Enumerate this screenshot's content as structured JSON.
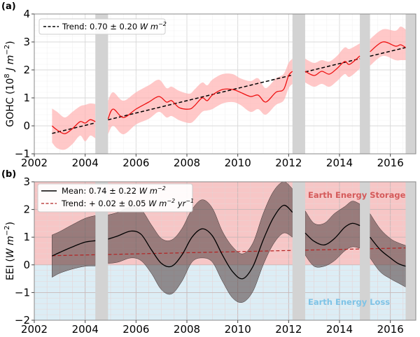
{
  "chart_data": [
    {
      "panel_label": "(a)",
      "type": "line",
      "ylabel": "GOHC (10",
      "ylabel_sup": "8",
      "ylabel_unit": " J m",
      "ylabel_unit_sup": "−2",
      "ylabel_close": ")",
      "xlim": [
        2002,
        2017
      ],
      "ylim": [
        -1,
        4
      ],
      "xticks": [
        "2002",
        "2004",
        "2006",
        "2008",
        "2010",
        "2012",
        "2014",
        "2016"
      ],
      "yticks": [
        "−1",
        "0",
        "1",
        "2",
        "3",
        "4"
      ],
      "grid": true,
      "legend_position": "top-left",
      "legend": [
        {
          "label": "Trend: 0.70 ± 0.20 ",
          "label_italic": "W m",
          "label_sup": "−2",
          "style": "dashed",
          "color": "#000000"
        }
      ],
      "gaps": [
        [
          2004.4,
          2004.9
        ],
        [
          2012.15,
          2012.65
        ],
        [
          2014.8,
          2015.2
        ],
        [
          2016.6,
          2017.0
        ]
      ],
      "series": [
        {
          "name": "GOHC",
          "color": "#ee1111",
          "band_color": "#ffb0b0",
          "segments": [
            {
              "x": [
                2002.7,
                2002.9,
                2003.2,
                2003.5,
                2003.8,
                2004.0,
                2004.2,
                2004.4
              ],
              "y": [
                0.0,
                -0.15,
                -0.28,
                -0.1,
                0.15,
                0.1,
                0.22,
                0.15
              ],
              "lo": [
                -0.6,
                -0.8,
                -0.85,
                -0.65,
                -0.35,
                -0.55,
                -0.35,
                -0.45
              ],
              "hi": [
                0.62,
                0.5,
                0.3,
                0.5,
                0.7,
                0.75,
                0.8,
                0.78
              ]
            },
            {
              "x": [
                2004.9,
                2005.1,
                2005.5,
                2006.0,
                2006.5,
                2006.9,
                2007.2,
                2007.4,
                2007.7,
                2008.1,
                2008.3,
                2008.6,
                2008.8,
                2009.0,
                2009.4,
                2009.8,
                2010.1,
                2010.5,
                2010.8,
                2011.1,
                2011.5,
                2011.8,
                2012.0,
                2012.15
              ],
              "y": [
                0.25,
                0.6,
                0.3,
                0.6,
                0.85,
                1.05,
                0.85,
                0.9,
                0.65,
                0.6,
                0.72,
                1.0,
                0.9,
                1.1,
                1.3,
                1.3,
                1.2,
                1.05,
                1.1,
                0.85,
                1.2,
                1.3,
                1.8,
                1.95
              ],
              "lo": [
                -0.3,
                0.0,
                -0.3,
                0.05,
                0.25,
                0.5,
                0.3,
                0.35,
                0.2,
                0.1,
                0.2,
                0.5,
                0.55,
                0.6,
                0.8,
                0.85,
                0.75,
                0.5,
                0.6,
                0.4,
                0.75,
                0.9,
                1.35,
                1.5
              ],
              "hi": [
                0.9,
                1.2,
                0.9,
                1.2,
                1.45,
                1.65,
                1.35,
                1.4,
                1.25,
                1.15,
                1.3,
                1.55,
                1.45,
                1.65,
                1.85,
                1.85,
                1.7,
                1.6,
                1.7,
                1.35,
                1.7,
                1.85,
                2.25,
                2.4
              ]
            },
            {
              "x": [
                2012.65,
                2013.0,
                2013.3,
                2013.6,
                2013.9,
                2014.2,
                2014.4,
                2014.8
              ],
              "y": [
                1.95,
                1.8,
                1.95,
                1.85,
                2.05,
                2.3,
                2.2,
                2.5
              ],
              "lo": [
                1.55,
                1.4,
                1.5,
                1.4,
                1.6,
                1.85,
                1.75,
                2.05
              ],
              "hi": [
                2.4,
                2.25,
                2.35,
                2.3,
                2.5,
                2.8,
                2.75,
                2.95
              ]
            },
            {
              "x": [
                2015.2,
                2015.7,
                2016.2,
                2016.4,
                2016.6
              ],
              "y": [
                2.65,
                3.0,
                2.85,
                2.9,
                2.8
              ],
              "lo": [
                2.15,
                2.5,
                2.35,
                2.35,
                2.35
              ],
              "hi": [
                3.1,
                3.45,
                3.4,
                3.55,
                3.45
              ]
            }
          ]
        }
      ],
      "trend": {
        "x": [
          2002.7,
          2016.6
        ],
        "y": [
          -0.27,
          2.8
        ],
        "color": "#000000"
      }
    },
    {
      "panel_label": "(b)",
      "type": "line",
      "ylabel": "EEI (",
      "ylabel_unit": "W m",
      "ylabel_unit_sup": "−2",
      "ylabel_close": ")",
      "xlim": [
        2002,
        2017
      ],
      "ylim": [
        -2,
        3
      ],
      "xticks": [
        "2002",
        "2004",
        "2006",
        "2008",
        "2010",
        "2012",
        "2014",
        "2016"
      ],
      "yticks": [
        "−2",
        "−1",
        "0",
        "1",
        "2",
        "3"
      ],
      "grid": true,
      "legend_position": "top-left",
      "legend": [
        {
          "label": "Mean: 0.74 ± 0.22 ",
          "label_italic": "W m",
          "label_sup": "−2",
          "style": "solid",
          "color": "#000000"
        },
        {
          "label": "Trend: + 0.02 ± 0.05 ",
          "label_italic": "W m",
          "label_sup": "−2",
          "label_italic2": " yr",
          "label_sup2": "−1",
          "style": "dashed",
          "color": "#b22222"
        }
      ],
      "regions": [
        {
          "label": "Earth Energy Storage",
          "range": [
            0,
            3
          ],
          "color": "#f7c6c6",
          "text_color": "#d45a5a"
        },
        {
          "label": "Earth Energy Loss",
          "range": [
            -2,
            0
          ],
          "color": "#dcedf5",
          "text_color": "#7ec3e6"
        }
      ],
      "gaps": [
        [
          2004.4,
          2004.9
        ],
        [
          2012.15,
          2012.65
        ],
        [
          2014.8,
          2015.2
        ],
        [
          2016.6,
          2017.0
        ]
      ],
      "series": [
        {
          "name": "EEI",
          "color": "#000000",
          "band_color": "#5a4a4a",
          "segments": [
            {
              "x": [
                2002.7,
                2003.0,
                2003.5,
                2004.0,
                2004.4
              ],
              "y": [
                0.32,
                0.45,
                0.65,
                0.82,
                0.87
              ],
              "lo": [
                -0.45,
                -0.3,
                -0.15,
                -0.05,
                -0.04
              ],
              "hi": [
                1.08,
                1.2,
                1.45,
                1.68,
                1.78
              ]
            },
            {
              "x": [
                2004.9,
                2005.3,
                2005.8,
                2006.2,
                2006.6,
                2007.0,
                2007.4,
                2007.8,
                2008.2,
                2008.6,
                2009.0,
                2009.4,
                2009.8,
                2010.2,
                2010.6,
                2011.0,
                2011.4,
                2011.8,
                2012.15
              ],
              "y": [
                0.93,
                1.05,
                1.22,
                1.1,
                0.55,
                0.05,
                -0.05,
                0.35,
                1.0,
                1.3,
                1.05,
                0.35,
                -0.25,
                -0.5,
                -0.05,
                0.9,
                1.7,
                2.15,
                1.9
              ],
              "lo": [
                0.05,
                0.1,
                0.25,
                0.15,
                -0.3,
                -0.9,
                -1.05,
                -0.6,
                0.1,
                0.25,
                0.1,
                -0.6,
                -1.2,
                -1.35,
                -0.95,
                0.0,
                0.75,
                1.15,
                1.0
              ],
              "hi": [
                1.8,
                1.9,
                2.1,
                2.0,
                1.45,
                0.95,
                0.9,
                1.3,
                2.0,
                2.35,
                2.05,
                1.2,
                0.65,
                0.4,
                0.8,
                1.85,
                2.65,
                3.0,
                2.75
              ]
            },
            {
              "x": [
                2012.65,
                2013.0,
                2013.4,
                2013.8,
                2014.2,
                2014.5,
                2014.8
              ],
              "y": [
                1.15,
                0.85,
                0.72,
                0.95,
                1.35,
                1.5,
                1.42
              ],
              "lo": [
                0.35,
                -0.05,
                -0.05,
                0.15,
                0.5,
                0.65,
                0.6
              ],
              "hi": [
                1.95,
                1.5,
                1.5,
                1.85,
                2.1,
                2.3,
                2.2
              ]
            },
            {
              "x": [
                2015.2,
                2015.6,
                2016.0,
                2016.3,
                2016.6
              ],
              "y": [
                1.0,
                0.55,
                0.25,
                0.05,
                -0.05
              ],
              "lo": [
                0.25,
                -0.25,
                -0.5,
                -0.65,
                -0.8
              ],
              "hi": [
                1.85,
                1.3,
                0.95,
                0.8,
                0.7
              ]
            }
          ]
        }
      ],
      "trend": {
        "x": [
          2002.7,
          2016.6
        ],
        "y": [
          0.33,
          0.61
        ],
        "color": "#b22222"
      }
    }
  ]
}
